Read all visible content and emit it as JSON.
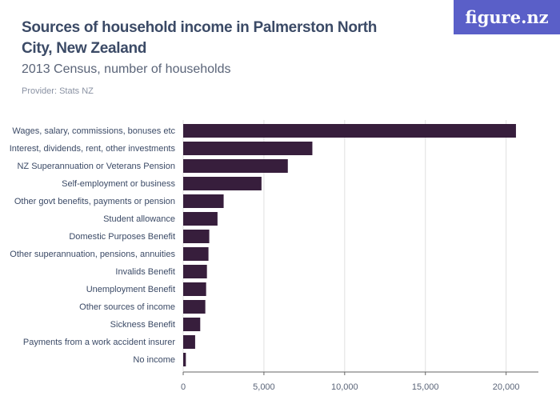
{
  "header": {
    "title": "Sources of household income in Palmerston North City, New Zealand",
    "subtitle": "2013 Census, number of households",
    "provider": "Provider: Stats NZ",
    "logo": "figure.nz"
  },
  "chart_data": {
    "type": "bar",
    "orientation": "horizontal",
    "categories": [
      "Wages, salary, commissions, bonuses etc",
      "Interest, dividends, rent, other investments",
      "NZ Superannuation or Veterans Pension",
      "Self-employment or business",
      "Other govt benefits, payments or pension",
      "Student allowance",
      "Domestic Purposes Benefit",
      "Other superannuation, pensions, annuities",
      "Invalids Benefit",
      "Unemployment Benefit",
      "Other sources of income",
      "Sickness Benefit",
      "Payments from a work accident insurer",
      "No income"
    ],
    "values": [
      20610,
      8000,
      6480,
      4850,
      2505,
      2125,
      1615,
      1565,
      1470,
      1420,
      1370,
      1055,
      740,
      165
    ],
    "xlim": [
      0,
      22000
    ],
    "ticks": [
      0,
      5000,
      10000,
      15000,
      20000
    ],
    "tick_labels": [
      "0",
      "5,000",
      "10,000",
      "15,000",
      "20,000"
    ],
    "grid": true,
    "bar_color": "#371e3c"
  }
}
